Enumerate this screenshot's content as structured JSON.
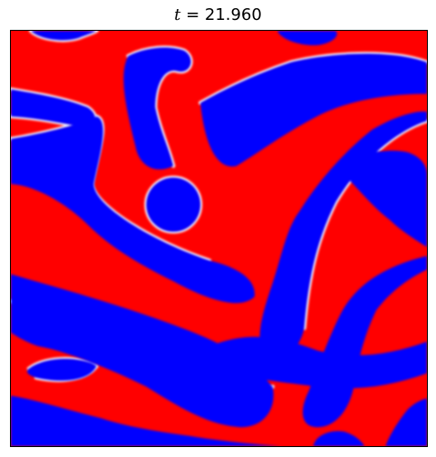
{
  "figure": {
    "title_symbol": "t",
    "title_eq": " = ",
    "title_value": "21.960",
    "colors": {
      "phase_a": "#ff0000",
      "phase_b": "#0000ff",
      "interface": "#ffffff"
    },
    "axes": {
      "ticks": "none",
      "frame": "black"
    }
  }
}
